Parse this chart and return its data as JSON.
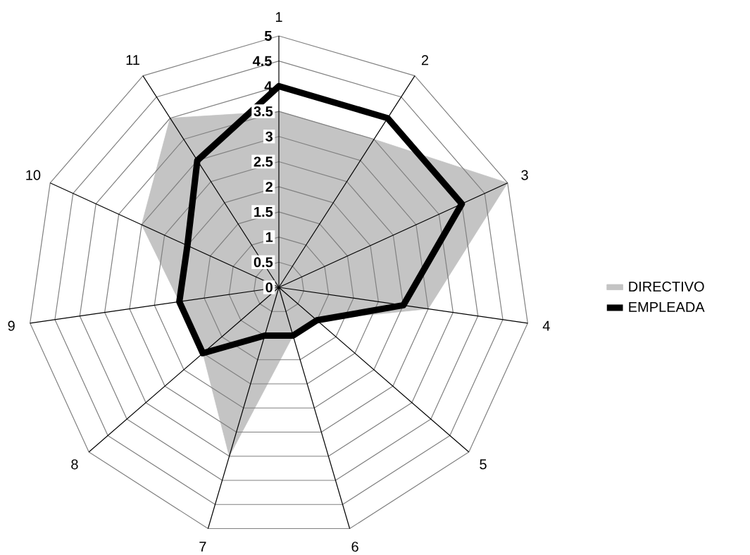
{
  "chart_data": {
    "type": "radar",
    "categories": [
      "1",
      "2",
      "3",
      "4",
      "5",
      "6",
      "7",
      "8",
      "9",
      "10",
      "11"
    ],
    "series": [
      {
        "name": "DIRECTIVO",
        "type": "area",
        "color": "#c4c4c4",
        "values": [
          3.5,
          3.5,
          5,
          3,
          1,
          1,
          3.5,
          2,
          2,
          3,
          4
        ]
      },
      {
        "name": "EMPLEADA",
        "color": "#000000",
        "values": [
          4,
          4,
          4,
          2.5,
          1,
          1,
          1,
          2,
          2,
          2,
          3
        ]
      }
    ],
    "ylim": [
      0,
      5
    ],
    "yticks": [
      0,
      0.5,
      1,
      1.5,
      2,
      2.5,
      3,
      3.5,
      4,
      4.5,
      5
    ],
    "grid": true,
    "legend": "right"
  }
}
